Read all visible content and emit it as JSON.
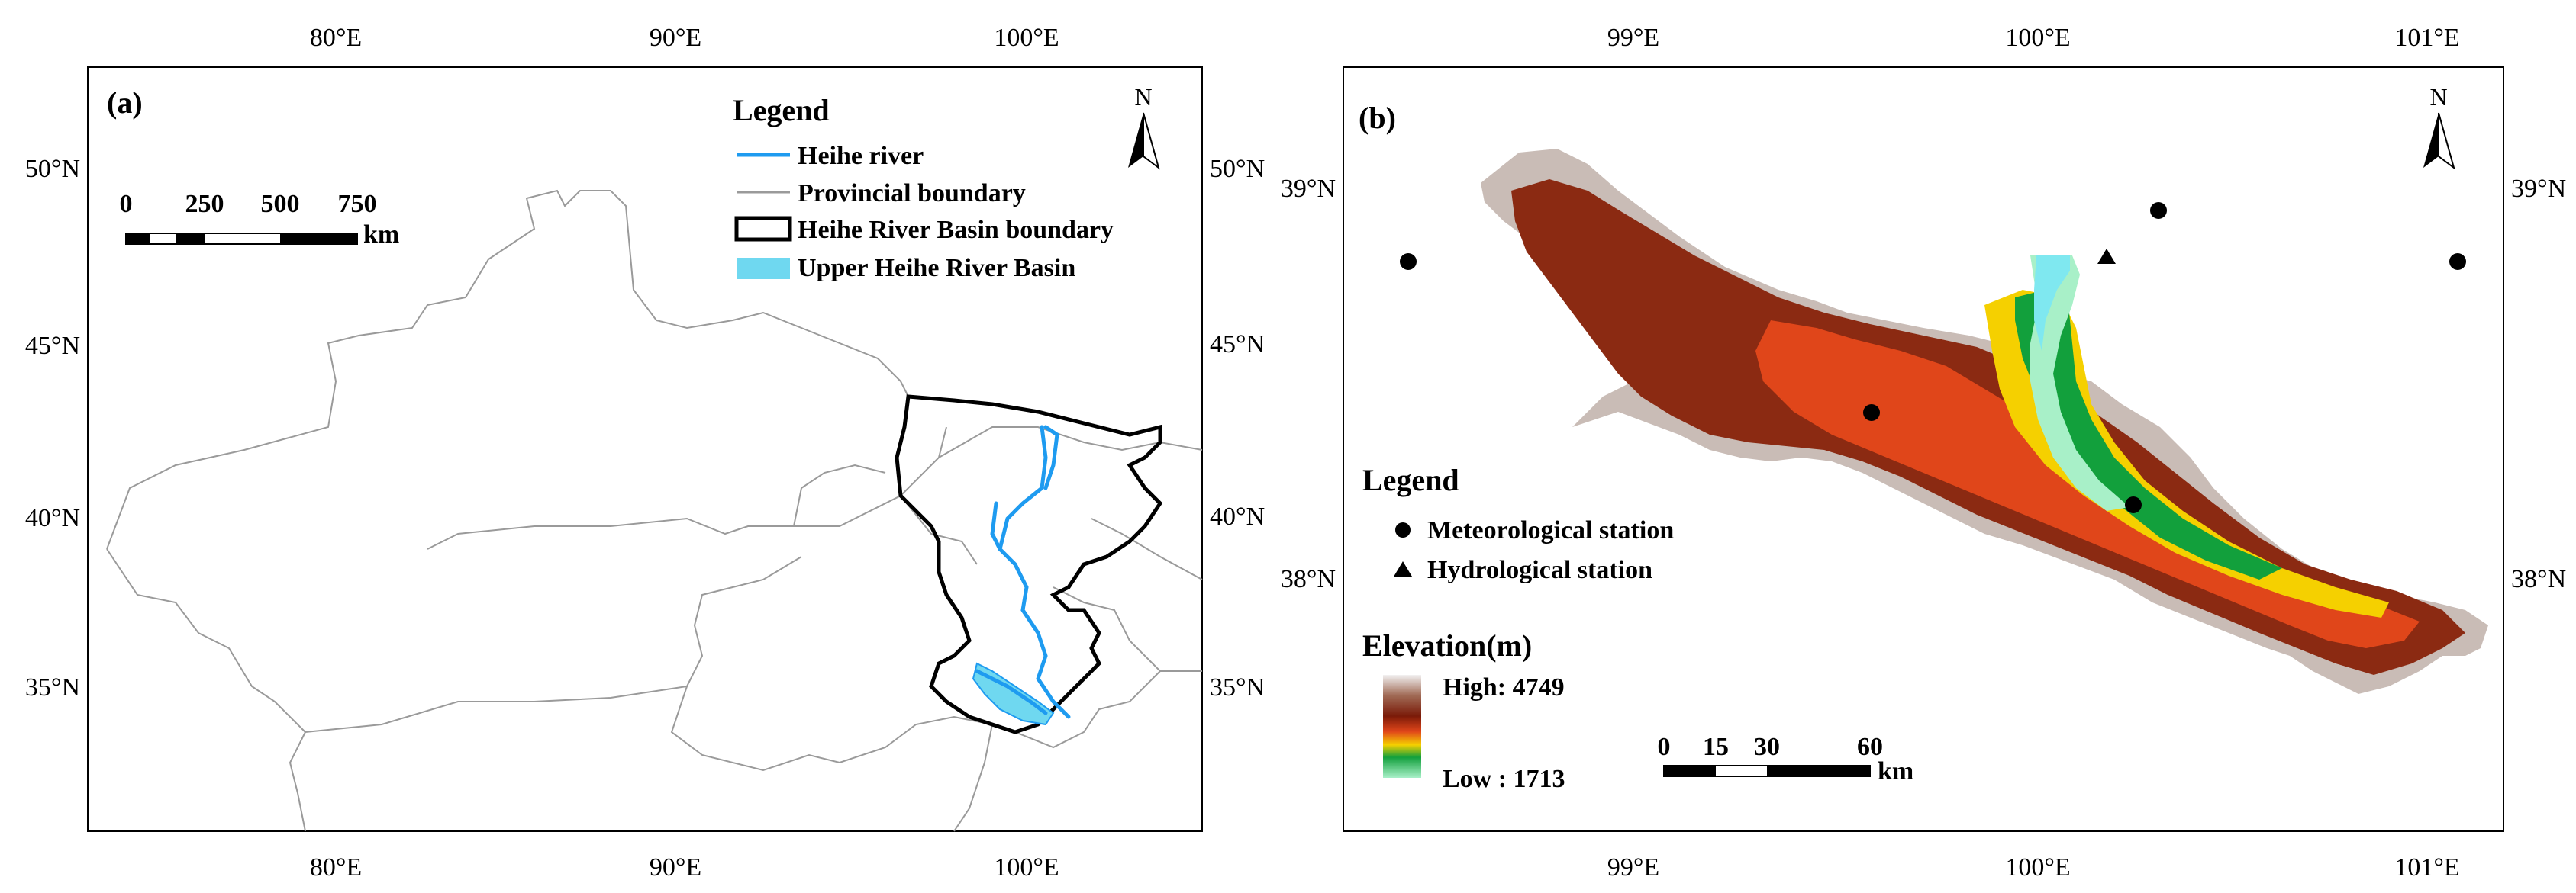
{
  "panel_a": {
    "label": "(a)",
    "top_ticks": [
      "80°E",
      "90°E",
      "100°E"
    ],
    "bottom_ticks": [
      "80°E",
      "90°E",
      "100°E"
    ],
    "left_ticks": [
      "50°N",
      "45°N",
      "40°N",
      "35°N"
    ],
    "right_ticks": [
      "50°N",
      "45°N",
      "40°N",
      "35°N"
    ],
    "north_letter": "N",
    "legend": {
      "title": "Legend",
      "items": [
        "Heihe river",
        "Provincial  boundary",
        "Heihe River Basin boundary",
        "Upper Heihe River Basin"
      ]
    },
    "scale_bar": {
      "labels": [
        "0",
        "250",
        "500",
        "750"
      ],
      "unit": "km"
    }
  },
  "panel_b": {
    "label": "(b)",
    "top_ticks": [
      "99°E",
      "100°E",
      "101°E"
    ],
    "bottom_ticks": [
      "99°E",
      "100°E",
      "101°E"
    ],
    "left_ticks": [
      "39°N",
      "38°N"
    ],
    "right_ticks": [
      "39°N",
      "38°N"
    ],
    "north_letter": "N",
    "legend": {
      "title": "Legend",
      "items": [
        "Meteorological station",
        "Hydrological station"
      ]
    },
    "elevation": {
      "title": "Elevation(m)",
      "high": "High: 4749",
      "low": "Low : 1713"
    },
    "scale_bar": {
      "labels": [
        "0",
        "15",
        "30",
        "60"
      ],
      "unit": "km"
    }
  },
  "colors": {
    "river": "#1e9bf0",
    "provincial_boundary": "#9a9a9a",
    "basin_boundary": "#000000",
    "upper_basin_fill": "#6fd8f0"
  }
}
